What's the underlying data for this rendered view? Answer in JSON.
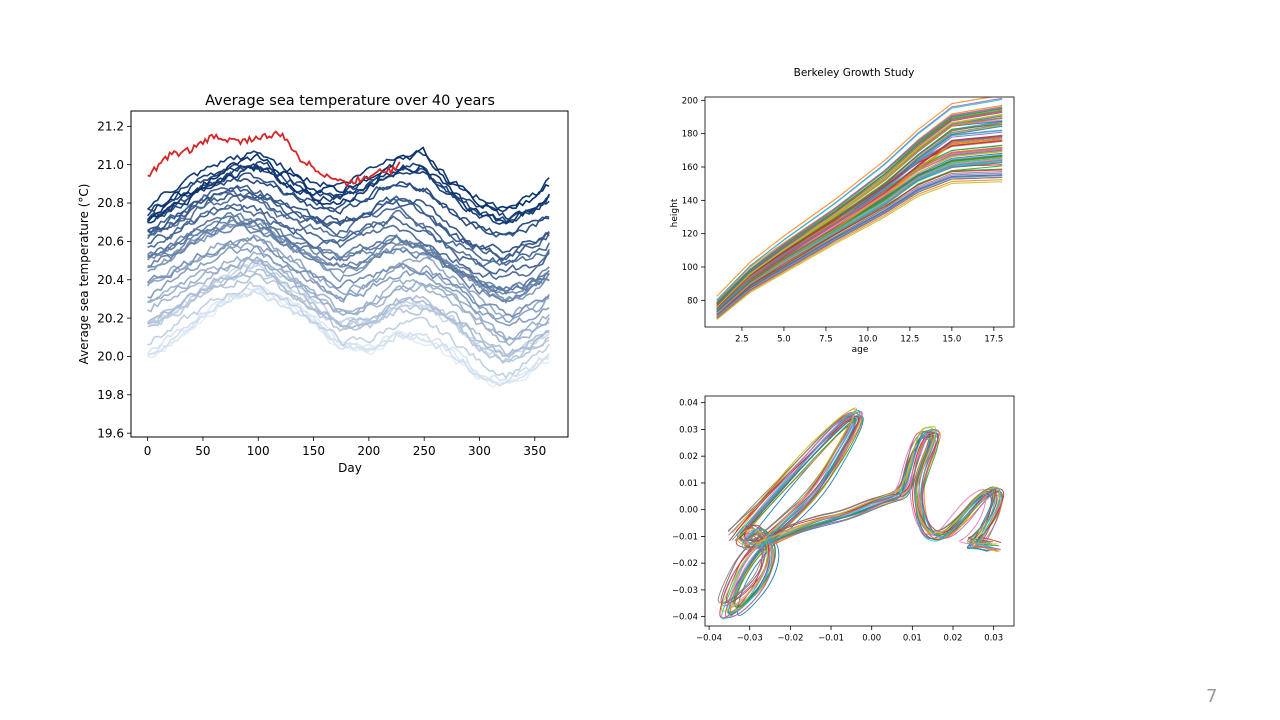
{
  "slide": {
    "page_number": "7"
  },
  "chart_data": [
    {
      "id": "sea",
      "type": "line",
      "title": "Average sea temperature over 40 years",
      "xlabel": "Day",
      "ylabel": "Average sea temperature (°C)",
      "xlim": [
        -15,
        380
      ],
      "ylim": [
        19.58,
        21.28
      ],
      "xticks": [
        0,
        50,
        100,
        150,
        200,
        250,
        300,
        350
      ],
      "yticks": [
        19.6,
        19.8,
        20.0,
        20.2,
        20.4,
        20.6,
        20.8,
        21.0,
        21.2
      ],
      "ytick_labels": [
        "19.6",
        "19.8",
        "20.0",
        "20.2",
        "20.4",
        "20.6",
        "20.8",
        "21.0",
        "21.2"
      ],
      "colormap": "Blues",
      "highlight_color": "#d62728",
      "series_count": 41,
      "series": [
        {
          "x": [
            0,
            25,
            50,
            75,
            100,
            125,
            150,
            175,
            200,
            225,
            250,
            275,
            300,
            325,
            350,
            365
          ],
          "values": [
            20.0,
            20.08,
            20.2,
            20.3,
            20.35,
            20.28,
            20.18,
            20.05,
            20.02,
            20.1,
            20.08,
            20.0,
            19.88,
            19.85,
            19.95,
            20.0
          ]
        },
        {
          "x": [
            0,
            25,
            50,
            75,
            100,
            125,
            150,
            175,
            200,
            225,
            250,
            275,
            300,
            325,
            350,
            365
          ],
          "values": [
            20.3,
            20.38,
            20.45,
            20.52,
            20.55,
            20.45,
            20.35,
            20.25,
            20.3,
            20.4,
            20.42,
            20.35,
            20.22,
            20.12,
            20.18,
            20.25
          ]
        },
        {
          "x": [
            0,
            25,
            50,
            75,
            100,
            125,
            150,
            175,
            200,
            225,
            250,
            275,
            300,
            325,
            350,
            365
          ],
          "values": [
            20.62,
            20.68,
            20.78,
            20.82,
            20.78,
            20.7,
            20.65,
            20.62,
            20.68,
            20.72,
            20.65,
            20.55,
            20.48,
            20.45,
            20.5,
            20.55
          ]
        },
        {
          "x": [
            0,
            25,
            50,
            75,
            100,
            125,
            150,
            175,
            200,
            225,
            250,
            275,
            300,
            325,
            350,
            365
          ],
          "values": [
            20.75,
            20.85,
            20.92,
            21.0,
            21.05,
            20.98,
            20.9,
            20.88,
            20.96,
            21.05,
            21.08,
            20.92,
            20.82,
            20.78,
            20.85,
            20.93
          ]
        },
        {
          "x": [
            0,
            20,
            40,
            60,
            80,
            100,
            120,
            140,
            160,
            180,
            200,
            210,
            220,
            228
          ],
          "values": [
            20.94,
            21.05,
            21.08,
            21.15,
            21.12,
            21.14,
            21.16,
            21.02,
            20.95,
            20.9,
            20.94,
            20.98,
            20.97,
            21.0
          ]
        }
      ]
    },
    {
      "id": "berkeley",
      "type": "line",
      "title": "Berkeley Growth Study",
      "xlabel": "age",
      "ylabel": "height",
      "xlim": [
        0.3,
        18.7
      ],
      "ylim": [
        64,
        202
      ],
      "xticks": [
        2.5,
        5.0,
        7.5,
        10.0,
        12.5,
        15.0,
        17.5
      ],
      "xtick_labels": [
        "2.5",
        "5.0",
        "7.5",
        "10.0",
        "12.5",
        "15.0",
        "17.5"
      ],
      "yticks": [
        80,
        100,
        120,
        140,
        160,
        180,
        200
      ],
      "series_count": 93,
      "series": [
        {
          "x": [
            1,
            3,
            5,
            8,
            11,
            13,
            15,
            18
          ],
          "values": [
            75,
            94,
            108,
            127,
            148,
            165,
            180,
            183
          ]
        },
        {
          "x": [
            1,
            3,
            5,
            8,
            11,
            13,
            15,
            18
          ],
          "values": [
            76,
            96,
            110,
            130,
            152,
            170,
            185,
            190
          ]
        },
        {
          "x": [
            1,
            3,
            5,
            8,
            11,
            13,
            15,
            18
          ],
          "values": [
            73,
            91,
            104,
            122,
            140,
            155,
            163,
            166
          ]
        },
        {
          "x": [
            1,
            3,
            5,
            8,
            11,
            13,
            15,
            18
          ],
          "values": [
            71,
            88,
            100,
            118,
            135,
            148,
            156,
            157
          ]
        },
        {
          "x": [
            1,
            3,
            5,
            8,
            11,
            13,
            15,
            18
          ],
          "values": [
            78,
            98,
            113,
            134,
            157,
            175,
            190,
            195
          ]
        },
        {
          "x": [
            1,
            3,
            5,
            8,
            11,
            13,
            15,
            18
          ],
          "values": [
            74,
            92,
            106,
            124,
            142,
            156,
            165,
            168
          ]
        },
        {
          "x": [
            1,
            3,
            5,
            8,
            11,
            13,
            15,
            18
          ],
          "values": [
            75,
            93,
            107,
            126,
            146,
            160,
            170,
            173
          ]
        }
      ]
    },
    {
      "id": "handwriting",
      "type": "line",
      "xlim": [
        -0.041,
        0.035
      ],
      "ylim": [
        -0.0435,
        0.0425
      ],
      "xticks": [
        -0.04,
        -0.03,
        -0.02,
        -0.01,
        0.0,
        0.01,
        0.02,
        0.03
      ],
      "xtick_labels": [
        "−0.04",
        "−0.03",
        "−0.02",
        "−0.01",
        "0.00",
        "0.01",
        "0.02",
        "0.03"
      ],
      "yticks": [
        -0.04,
        -0.03,
        -0.02,
        -0.01,
        0.0,
        0.01,
        0.02,
        0.03,
        0.04
      ],
      "ytick_labels": [
        "−0.04",
        "−0.03",
        "−0.02",
        "−0.01",
        "0.00",
        "0.01",
        "0.02",
        "0.03",
        "0.04"
      ],
      "series_count": 20,
      "series": [
        {
          "x": [
            -0.033,
            -0.025,
            -0.015,
            -0.008,
            -0.003,
            -0.004,
            -0.008,
            -0.014,
            -0.022,
            -0.03,
            -0.034,
            -0.036,
            -0.032,
            -0.026,
            -0.024,
            -0.028,
            -0.032,
            -0.028,
            -0.02,
            -0.012,
            -0.006,
            0.0,
            0.004,
            0.008,
            0.01,
            0.012,
            0.014,
            0.016,
            0.012,
            0.011,
            0.013,
            0.017,
            0.022,
            0.026,
            0.03,
            0.031,
            0.029,
            0.026,
            0.024,
            0.026,
            0.03
          ],
          "values": [
            -0.01,
            0.004,
            0.02,
            0.032,
            0.037,
            0.031,
            0.02,
            0.006,
            -0.006,
            -0.018,
            -0.03,
            -0.039,
            -0.036,
            -0.026,
            -0.014,
            -0.006,
            -0.012,
            -0.014,
            -0.008,
            -0.004,
            -0.002,
            0.002,
            0.004,
            0.006,
            0.018,
            0.027,
            0.029,
            0.028,
            0.014,
            0.004,
            -0.008,
            -0.011,
            -0.004,
            0.004,
            0.008,
            0.005,
            -0.004,
            -0.011,
            -0.013,
            -0.013,
            -0.014
          ]
        }
      ]
    }
  ]
}
